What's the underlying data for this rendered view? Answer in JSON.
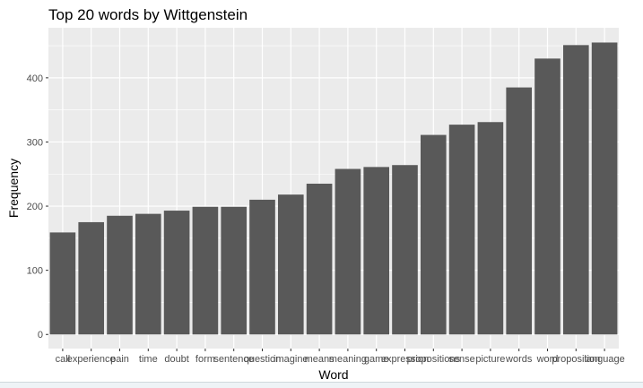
{
  "chart_data": {
    "type": "bar",
    "title": "Top 20 words by Wittgenstein",
    "xlabel": "Word",
    "ylabel": "Frequency",
    "categories": [
      "call",
      "experience",
      "pain",
      "time",
      "doubt",
      "form",
      "sentence",
      "question",
      "imagine",
      "means",
      "meaning",
      "game",
      "expression",
      "propositions",
      "sense",
      "picture",
      "words",
      "word",
      "proposition",
      "language"
    ],
    "values": [
      159,
      175,
      185,
      188,
      193,
      199,
      199,
      210,
      218,
      235,
      258,
      261,
      264,
      311,
      327,
      331,
      385,
      430,
      451,
      455
    ],
    "yticks": [
      0,
      100,
      200,
      300,
      400
    ],
    "ylim": [
      -22,
      478
    ],
    "grid": true,
    "bar_color": "#595959",
    "panel_color": "#ebebeb",
    "grid_color": "#ffffff"
  }
}
